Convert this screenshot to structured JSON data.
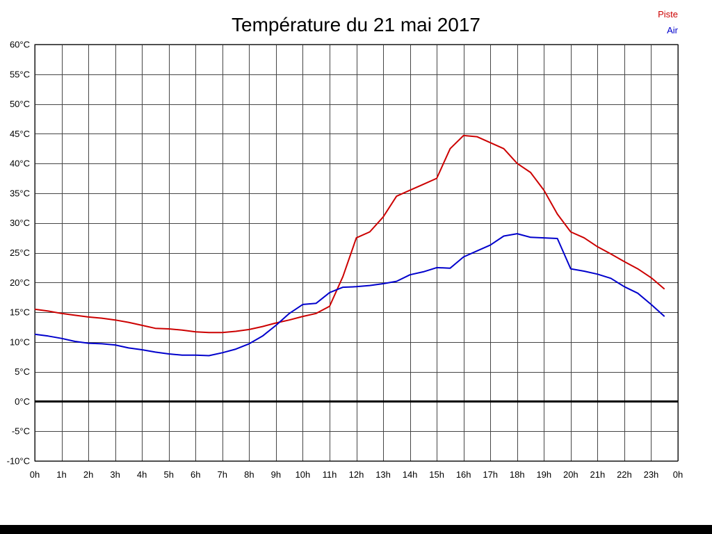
{
  "chart_data": {
    "type": "line",
    "title": "Température du 21 mai 2017",
    "xlabel": "",
    "ylabel": "",
    "xlim": [
      0,
      24
    ],
    "ylim": [
      -10,
      60
    ],
    "y_tick_step": 5,
    "y_tick_suffix": "°C",
    "x_tick_labels": [
      "0h",
      "1h",
      "2h",
      "3h",
      "4h",
      "5h",
      "6h",
      "7h",
      "8h",
      "9h",
      "10h",
      "11h",
      "12h",
      "13h",
      "14h",
      "15h",
      "16h",
      "17h",
      "18h",
      "19h",
      "20h",
      "21h",
      "22h",
      "23h",
      "0h"
    ],
    "grid": true,
    "grid_color": "#454545",
    "border_color": "#000000",
    "zero_line": {
      "value": 0,
      "color": "#000000",
      "width": 3
    },
    "legend_position": "top-right",
    "x": [
      0,
      0.5,
      1,
      1.5,
      2,
      2.5,
      3,
      3.5,
      4,
      4.5,
      5,
      5.5,
      6,
      6.5,
      7,
      7.5,
      8,
      8.5,
      9,
      9.5,
      10,
      10.5,
      11,
      11.5,
      12,
      12.5,
      13,
      13.5,
      14,
      14.5,
      15,
      15.5,
      16,
      16.5,
      17,
      17.5,
      18,
      18.5,
      19,
      19.5,
      20,
      20.5,
      21,
      21.5,
      22,
      22.5,
      23,
      23.5
    ],
    "series": [
      {
        "name": "Piste",
        "color": "#cc0000",
        "values": [
          15.5,
          15.2,
          14.8,
          14.5,
          14.2,
          14.0,
          13.7,
          13.3,
          12.8,
          12.3,
          12.2,
          12.0,
          11.7,
          11.6,
          11.6,
          11.8,
          12.1,
          12.6,
          13.2,
          13.7,
          14.3,
          14.8,
          16.0,
          21.0,
          27.5,
          28.5,
          31.0,
          34.5,
          35.5,
          36.5,
          37.5,
          42.5,
          44.7,
          44.5,
          43.5,
          42.5,
          40.0,
          38.5,
          35.5,
          31.5,
          28.5,
          27.5,
          26.0,
          24.8,
          23.5,
          22.3,
          20.8,
          18.9
        ]
      },
      {
        "name": "Air",
        "color": "#0000cc",
        "values": [
          11.3,
          11.0,
          10.6,
          10.1,
          9.8,
          9.7,
          9.5,
          9.0,
          8.7,
          8.3,
          8.0,
          7.8,
          7.8,
          7.7,
          8.2,
          8.8,
          9.7,
          11.0,
          12.8,
          14.8,
          16.3,
          16.5,
          18.3,
          19.2,
          19.3,
          19.5,
          19.8,
          20.2,
          21.3,
          21.8,
          22.5,
          22.4,
          24.3,
          25.3,
          26.3,
          27.8,
          28.2,
          27.6,
          27.5,
          27.4,
          22.3,
          21.9,
          21.4,
          20.7,
          19.3,
          18.2,
          16.3,
          14.3
        ]
      }
    ]
  }
}
